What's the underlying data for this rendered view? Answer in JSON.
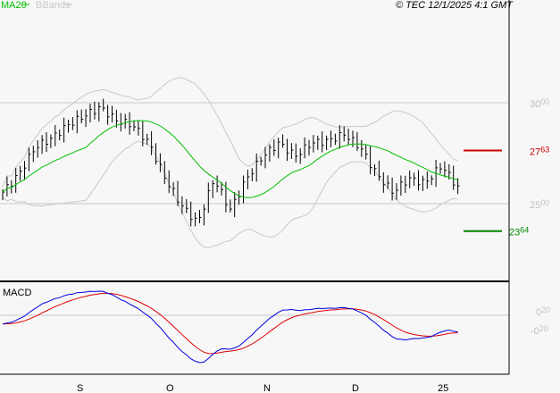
{
  "header": {
    "legend_ma": "MA20",
    "legend_bb": "BBands",
    "copyright": "© TEC 12/1/2025 4:1 GMT"
  },
  "colors": {
    "ma": "#00c000",
    "bb": "#c8c8c8",
    "bars": "#000000",
    "macd": "#0000e0",
    "signal": "#e00000",
    "resistance": "#cc0000",
    "support": "#008800",
    "axis_label": "#c0c0c0"
  },
  "chart_data": {
    "type": "bar",
    "title": "",
    "price_axis": {
      "ticks": [
        {
          "value": 3000,
          "main": "30",
          "sup": "00"
        },
        {
          "value": 2500,
          "main": "25",
          "sup": "00"
        }
      ],
      "ylim": [
        2100,
        3450
      ]
    },
    "levels": [
      {
        "name": "resistance",
        "value": 2763,
        "main": "27",
        "sup": "63"
      },
      {
        "name": "support",
        "value": 2364,
        "main": "23",
        "sup": "64"
      }
    ],
    "close_keypoints": [
      2557,
      2646,
      2779,
      2823,
      2889,
      2934,
      2978,
      2912,
      2889,
      2801,
      2624,
      2491,
      2403,
      2624,
      2469,
      2624,
      2735,
      2801,
      2735,
      2801,
      2810,
      2845,
      2779,
      2646,
      2557,
      2624,
      2602,
      2690,
      2580
    ],
    "macd_panel": {
      "label": "MACD",
      "ticks": [
        {
          "value": 0.2,
          "main": "0",
          "sup": "20"
        },
        {
          "value": -0.2,
          "main": "-0",
          "sup": "20"
        }
      ]
    },
    "x_ticks": [
      "S",
      "O",
      "N",
      "D",
      "25"
    ]
  }
}
